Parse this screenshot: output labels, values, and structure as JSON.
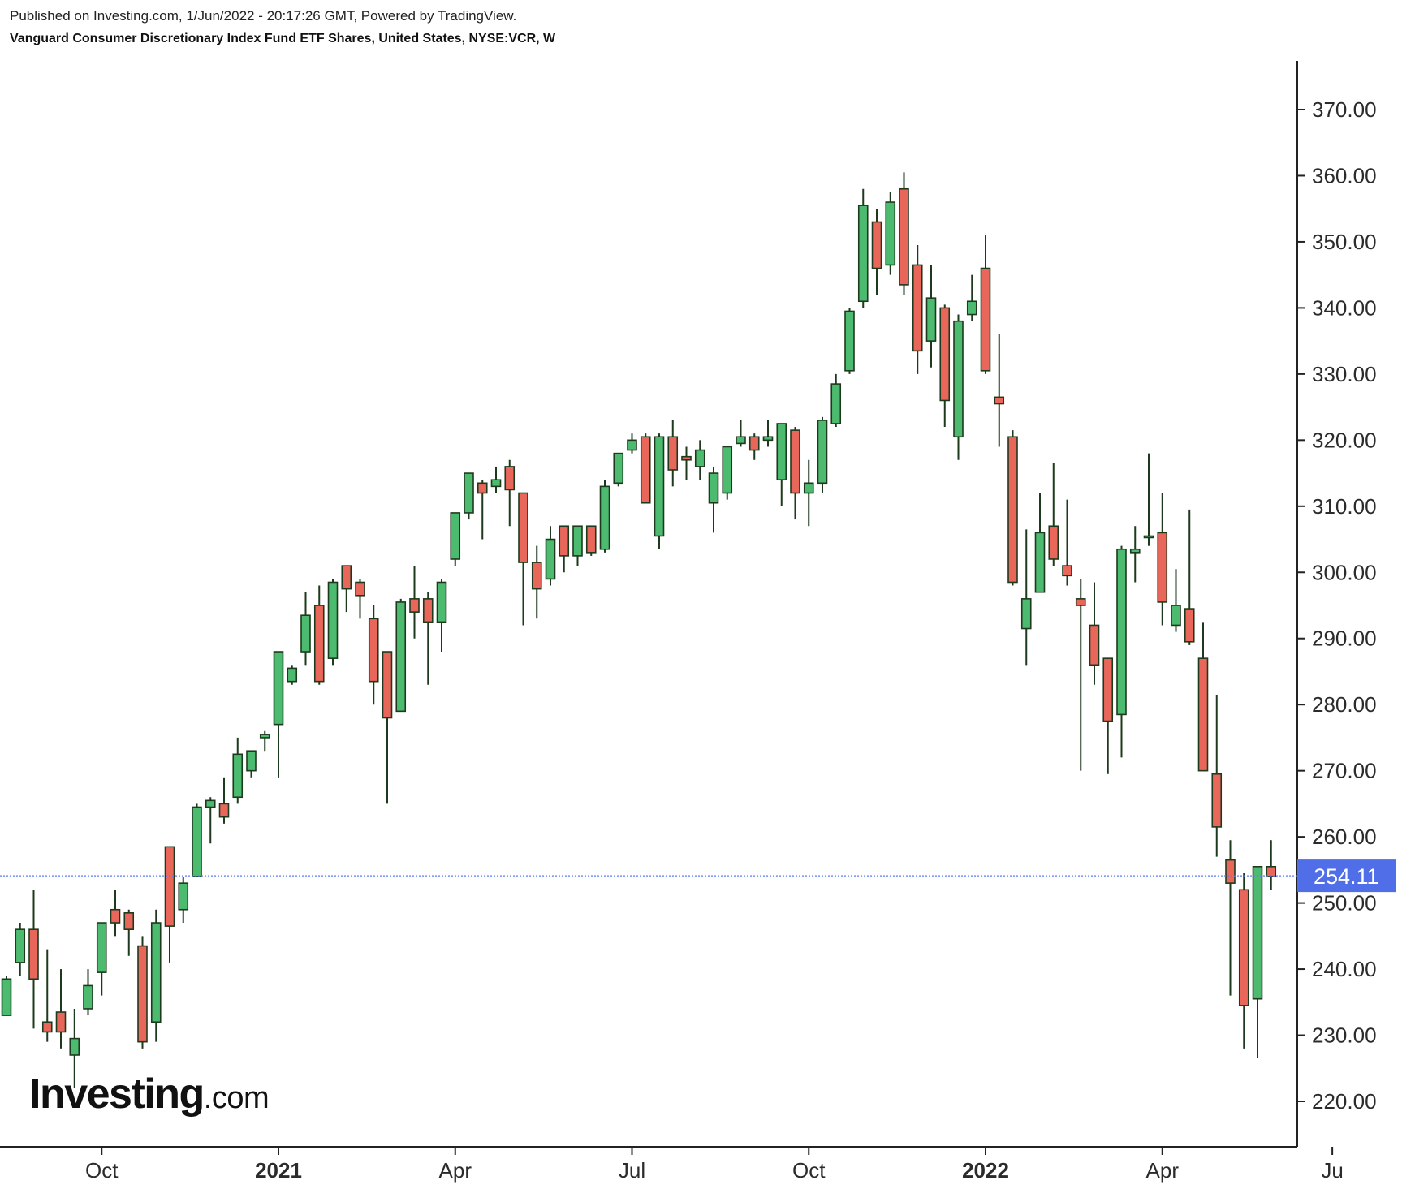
{
  "header": {
    "published": "Published on Investing.com, 1/Jun/2022 - 20:17:26 GMT, Powered by TradingView.",
    "instrument": "Vanguard Consumer Discretionary Index Fund ETF Shares, United States, NYSE:VCR, W"
  },
  "watermark": {
    "main": "Investing",
    "dot_com": ".com"
  },
  "colors": {
    "up": "#4cbb6f",
    "down": "#e8675a",
    "wick": "#1e3a1e",
    "last_price_line": "#5a7cf0",
    "last_price_badge": "#4f6ee8"
  },
  "chart_data": {
    "type": "candlestick",
    "timeframe": "W",
    "ylim": [
      213,
      376
    ],
    "yticks": [
      220,
      230,
      240,
      250,
      260,
      270,
      280,
      290,
      300,
      310,
      320,
      330,
      340,
      350,
      360,
      370
    ],
    "ytick_labels": [
      "220.00",
      "230.00",
      "240.00",
      "250.00",
      "260.00",
      "270.00",
      "280.00",
      "290.00",
      "300.00",
      "310.00",
      "320.00",
      "330.00",
      "340.00",
      "350.00",
      "360.00",
      "370.00"
    ],
    "xticks": [
      {
        "label": "Oct",
        "bold": false,
        "index": 7
      },
      {
        "label": "2021",
        "bold": true,
        "index": 20
      },
      {
        "label": "Apr",
        "bold": false,
        "index": 33
      },
      {
        "label": "Jul",
        "bold": false,
        "index": 46
      },
      {
        "label": "Oct",
        "bold": false,
        "index": 59
      },
      {
        "label": "2022",
        "bold": true,
        "index": 72
      },
      {
        "label": "Apr",
        "bold": false,
        "index": 85
      },
      {
        "label": "Ju",
        "bold": false,
        "index": 97.5
      }
    ],
    "last_price": 254.11,
    "last_price_label": "254.11",
    "candles": [
      {
        "o": 233,
        "h": 239,
        "l": 233,
        "c": 238.5
      },
      {
        "o": 241,
        "h": 247,
        "l": 239,
        "c": 246
      },
      {
        "o": 246,
        "h": 252,
        "l": 231,
        "c": 238.5
      },
      {
        "o": 232,
        "h": 243,
        "l": 229,
        "c": 230.5
      },
      {
        "o": 233.5,
        "h": 240,
        "l": 228,
        "c": 230.5
      },
      {
        "o": 227,
        "h": 234,
        "l": 222,
        "c": 229.5
      },
      {
        "o": 234,
        "h": 240,
        "l": 233,
        "c": 237.5
      },
      {
        "o": 239.5,
        "h": 247,
        "l": 236,
        "c": 247
      },
      {
        "o": 249,
        "h": 252,
        "l": 245,
        "c": 247
      },
      {
        "o": 248.5,
        "h": 249,
        "l": 242,
        "c": 246
      },
      {
        "o": 243.5,
        "h": 245,
        "l": 228,
        "c": 229
      },
      {
        "o": 232,
        "h": 249,
        "l": 229,
        "c": 247
      },
      {
        "o": 258.5,
        "h": 258.5,
        "l": 241,
        "c": 246.5
      },
      {
        "o": 249,
        "h": 254,
        "l": 247,
        "c": 253
      },
      {
        "o": 254,
        "h": 265,
        "l": 254,
        "c": 264.5
      },
      {
        "o": 264.5,
        "h": 266,
        "l": 259,
        "c": 265.5
      },
      {
        "o": 265,
        "h": 269,
        "l": 262,
        "c": 263
      },
      {
        "o": 266,
        "h": 275,
        "l": 265,
        "c": 272.5
      },
      {
        "o": 270,
        "h": 273,
        "l": 269,
        "c": 273
      },
      {
        "o": 275,
        "h": 276,
        "l": 273,
        "c": 275.5
      },
      {
        "o": 277,
        "h": 288,
        "l": 269,
        "c": 288
      },
      {
        "o": 283.5,
        "h": 286,
        "l": 283,
        "c": 285.5
      },
      {
        "o": 288,
        "h": 297,
        "l": 286,
        "c": 293.5
      },
      {
        "o": 295,
        "h": 298,
        "l": 283,
        "c": 283.5
      },
      {
        "o": 287,
        "h": 299,
        "l": 286,
        "c": 298.5
      },
      {
        "o": 301,
        "h": 301,
        "l": 294,
        "c": 297.5
      },
      {
        "o": 298.5,
        "h": 299,
        "l": 293,
        "c": 296.5
      },
      {
        "o": 293,
        "h": 295,
        "l": 280,
        "c": 283.5
      },
      {
        "o": 288,
        "h": 288,
        "l": 265,
        "c": 278
      },
      {
        "o": 279,
        "h": 296,
        "l": 279,
        "c": 295.5
      },
      {
        "o": 296,
        "h": 301,
        "l": 290,
        "c": 294
      },
      {
        "o": 296,
        "h": 297,
        "l": 283,
        "c": 292.5
      },
      {
        "o": 292.5,
        "h": 299,
        "l": 288,
        "c": 298.5
      },
      {
        "o": 302,
        "h": 309,
        "l": 301,
        "c": 309
      },
      {
        "o": 309,
        "h": 315,
        "l": 308,
        "c": 315
      },
      {
        "o": 313.5,
        "h": 314,
        "l": 305,
        "c": 312
      },
      {
        "o": 313,
        "h": 316,
        "l": 312,
        "c": 314
      },
      {
        "o": 316,
        "h": 317,
        "l": 307,
        "c": 312.5
      },
      {
        "o": 312,
        "h": 312,
        "l": 292,
        "c": 301.5
      },
      {
        "o": 301.5,
        "h": 304,
        "l": 293,
        "c": 297.5
      },
      {
        "o": 299,
        "h": 307,
        "l": 298,
        "c": 305
      },
      {
        "o": 307,
        "h": 307,
        "l": 300,
        "c": 302.5
      },
      {
        "o": 302.5,
        "h": 307,
        "l": 301,
        "c": 307
      },
      {
        "o": 307,
        "h": 307,
        "l": 302.5,
        "c": 303
      },
      {
        "o": 303.5,
        "h": 314,
        "l": 303,
        "c": 313
      },
      {
        "o": 313.5,
        "h": 318,
        "l": 313,
        "c": 318
      },
      {
        "o": 318.5,
        "h": 321,
        "l": 318,
        "c": 320
      },
      {
        "o": 320.5,
        "h": 321,
        "l": 311,
        "c": 310.5
      },
      {
        "o": 305.5,
        "h": 321,
        "l": 303.5,
        "c": 320.5
      },
      {
        "o": 320.5,
        "h": 323,
        "l": 313,
        "c": 315.5
      },
      {
        "o": 317.5,
        "h": 319,
        "l": 314,
        "c": 317
      },
      {
        "o": 316,
        "h": 320,
        "l": 314,
        "c": 318.5
      },
      {
        "o": 310.5,
        "h": 316,
        "l": 306,
        "c": 315
      },
      {
        "o": 312,
        "h": 319,
        "l": 311,
        "c": 319
      },
      {
        "o": 319.5,
        "h": 323,
        "l": 319,
        "c": 320.5
      },
      {
        "o": 320.5,
        "h": 321,
        "l": 317,
        "c": 318.5
      },
      {
        "o": 320,
        "h": 323,
        "l": 319,
        "c": 320.5
      },
      {
        "o": 314,
        "h": 322,
        "l": 310,
        "c": 322.5
      },
      {
        "o": 321.5,
        "h": 322,
        "l": 308,
        "c": 312
      },
      {
        "o": 312,
        "h": 317,
        "l": 307,
        "c": 313.5
      },
      {
        "o": 313.5,
        "h": 323.5,
        "l": 312,
        "c": 323
      },
      {
        "o": 322.5,
        "h": 330,
        "l": 322,
        "c": 328.5
      },
      {
        "o": 330.5,
        "h": 340,
        "l": 330,
        "c": 339.5
      },
      {
        "o": 341,
        "h": 358,
        "l": 340,
        "c": 355.5
      },
      {
        "o": 353,
        "h": 355,
        "l": 342,
        "c": 346
      },
      {
        "o": 346.5,
        "h": 357.5,
        "l": 345,
        "c": 356
      },
      {
        "o": 358,
        "h": 360.5,
        "l": 342,
        "c": 343.5
      },
      {
        "o": 346.5,
        "h": 349.5,
        "l": 330,
        "c": 333.5
      },
      {
        "o": 335,
        "h": 346.5,
        "l": 331,
        "c": 341.5
      },
      {
        "o": 340,
        "h": 340.5,
        "l": 322,
        "c": 326
      },
      {
        "o": 320.5,
        "h": 339,
        "l": 317,
        "c": 338
      },
      {
        "o": 339,
        "h": 345,
        "l": 338,
        "c": 341
      },
      {
        "o": 346,
        "h": 351,
        "l": 330,
        "c": 330.5
      },
      {
        "o": 326.5,
        "h": 336,
        "l": 319,
        "c": 325.5
      },
      {
        "o": 320.5,
        "h": 321.5,
        "l": 298,
        "c": 298.5
      },
      {
        "o": 291.5,
        "h": 306.5,
        "l": 286,
        "c": 296
      },
      {
        "o": 297,
        "h": 312,
        "l": 297,
        "c": 306
      },
      {
        "o": 307,
        "h": 316.5,
        "l": 301,
        "c": 302
      },
      {
        "o": 301,
        "h": 311,
        "l": 298,
        "c": 299.5
      },
      {
        "o": 296,
        "h": 299,
        "l": 270,
        "c": 295
      },
      {
        "o": 292,
        "h": 298.5,
        "l": 283,
        "c": 286
      },
      {
        "o": 287,
        "h": 287,
        "l": 269.5,
        "c": 277.5
      },
      {
        "o": 278.5,
        "h": 304,
        "l": 272,
        "c": 303.5
      },
      {
        "o": 303,
        "h": 307,
        "l": 298.5,
        "c": 303.5
      },
      {
        "o": 305.5,
        "h": 318,
        "l": 304,
        "c": 305.5
      },
      {
        "o": 306,
        "h": 312,
        "l": 292,
        "c": 295.5
      },
      {
        "o": 292,
        "h": 300.5,
        "l": 291,
        "c": 295
      },
      {
        "o": 294.5,
        "h": 309.5,
        "l": 289,
        "c": 289.5
      },
      {
        "o": 287,
        "h": 292.5,
        "l": 270.5,
        "c": 270
      },
      {
        "o": 269.5,
        "h": 281.5,
        "l": 257,
        "c": 261.5
      },
      {
        "o": 256.5,
        "h": 259.5,
        "l": 236,
        "c": 253
      },
      {
        "o": 252,
        "h": 254.5,
        "l": 228,
        "c": 234.5
      },
      {
        "o": 235.5,
        "h": 255,
        "l": 226.5,
        "c": 255.5
      },
      {
        "o": 255.5,
        "h": 259.5,
        "l": 252,
        "c": 254
      }
    ]
  }
}
